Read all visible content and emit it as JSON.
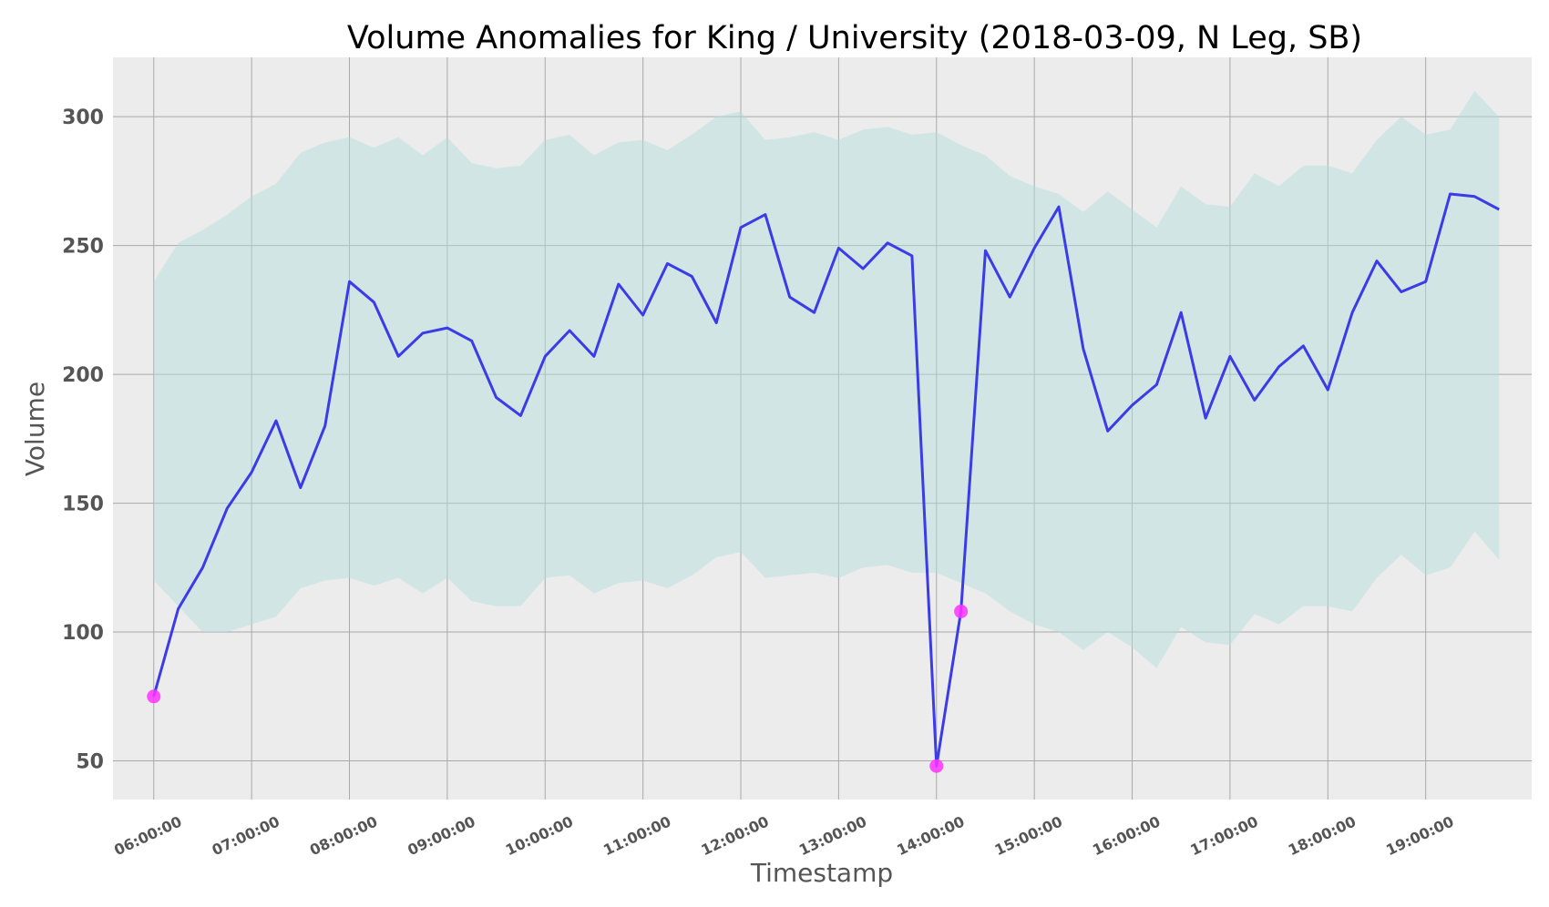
{
  "colors": {
    "plot_background": "#ececec",
    "grid": "#a9a9a9",
    "band_fill": "#b2dfdb",
    "line": "#3b3be8",
    "anomaly": "#ff33ff"
  },
  "chart_data": {
    "type": "line",
    "title": "Volume Anomalies for King / University (2018-03-09, N Leg, SB)",
    "xlabel": "Timestamp",
    "ylabel": "Volume",
    "x_interval_minutes": 15,
    "x": [
      "06:00:00",
      "06:15:00",
      "06:30:00",
      "06:45:00",
      "07:00:00",
      "07:15:00",
      "07:30:00",
      "07:45:00",
      "08:00:00",
      "08:15:00",
      "08:30:00",
      "08:45:00",
      "09:00:00",
      "09:15:00",
      "09:30:00",
      "09:45:00",
      "10:00:00",
      "10:15:00",
      "10:30:00",
      "10:45:00",
      "11:00:00",
      "11:15:00",
      "11:30:00",
      "11:45:00",
      "12:00:00",
      "12:15:00",
      "12:30:00",
      "12:45:00",
      "13:00:00",
      "13:15:00",
      "13:30:00",
      "13:45:00",
      "14:00:00",
      "14:15:00",
      "14:30:00",
      "14:45:00",
      "15:00:00",
      "15:15:00",
      "15:30:00",
      "15:45:00",
      "16:00:00",
      "16:15:00",
      "16:30:00",
      "16:45:00",
      "17:00:00",
      "17:15:00",
      "17:30:00",
      "17:45:00",
      "18:00:00",
      "18:15:00",
      "18:30:00",
      "18:45:00",
      "19:00:00",
      "19:15:00",
      "19:30:00",
      "19:45:00"
    ],
    "series": [
      {
        "values": [
          75,
          109,
          125,
          148,
          162,
          182,
          156,
          180,
          236,
          228,
          207,
          216,
          218,
          213,
          191,
          184,
          207,
          217,
          207,
          235,
          223,
          243,
          238,
          220,
          257,
          262,
          230,
          224,
          249,
          241,
          251,
          246,
          48,
          108,
          248,
          230,
          249,
          265,
          210,
          178,
          188,
          196,
          224,
          183,
          207,
          190,
          203,
          211,
          194,
          224,
          244,
          232,
          236,
          270,
          269,
          264
        ]
      }
    ],
    "band_upper": [
      236,
      251,
      256,
      262,
      269,
      274,
      286,
      290,
      292,
      288,
      292,
      285,
      292,
      282,
      280,
      281,
      291,
      293,
      285,
      290,
      291,
      287,
      293,
      300,
      302,
      291,
      292,
      294,
      291,
      295,
      296,
      293,
      294,
      289,
      285,
      277,
      273,
      270,
      263,
      271,
      264,
      257,
      273,
      266,
      265,
      278,
      273,
      281,
      281,
      278,
      291,
      300,
      293,
      295,
      310,
      300
    ],
    "band_lower": [
      120,
      110,
      100,
      100,
      103,
      106,
      117,
      120,
      121,
      118,
      121,
      115,
      121,
      112,
      110,
      110,
      121,
      122,
      115,
      119,
      120,
      117,
      122,
      129,
      131,
      121,
      122,
      123,
      121,
      125,
      126,
      123,
      123,
      119,
      115,
      108,
      103,
      100,
      93,
      100,
      94,
      86,
      102,
      96,
      95,
      107,
      103,
      110,
      110,
      108,
      121,
      130,
      122,
      125,
      139,
      128
    ],
    "anomalies": [
      {
        "x": "06:00:00",
        "y": 75
      },
      {
        "x": "14:00:00",
        "y": 48
      },
      {
        "x": "14:15:00",
        "y": 108
      }
    ],
    "x_ticks": [
      "06:00:00",
      "07:00:00",
      "08:00:00",
      "09:00:00",
      "10:00:00",
      "11:00:00",
      "12:00:00",
      "13:00:00",
      "14:00:00",
      "15:00:00",
      "16:00:00",
      "17:00:00",
      "18:00:00",
      "19:00:00"
    ],
    "y_ticks": [
      50,
      100,
      150,
      200,
      250,
      300
    ],
    "ylim": [
      35,
      323
    ],
    "xlim": [
      "05:35:00",
      "20:05:00"
    ],
    "grid": true,
    "legend": "none"
  }
}
